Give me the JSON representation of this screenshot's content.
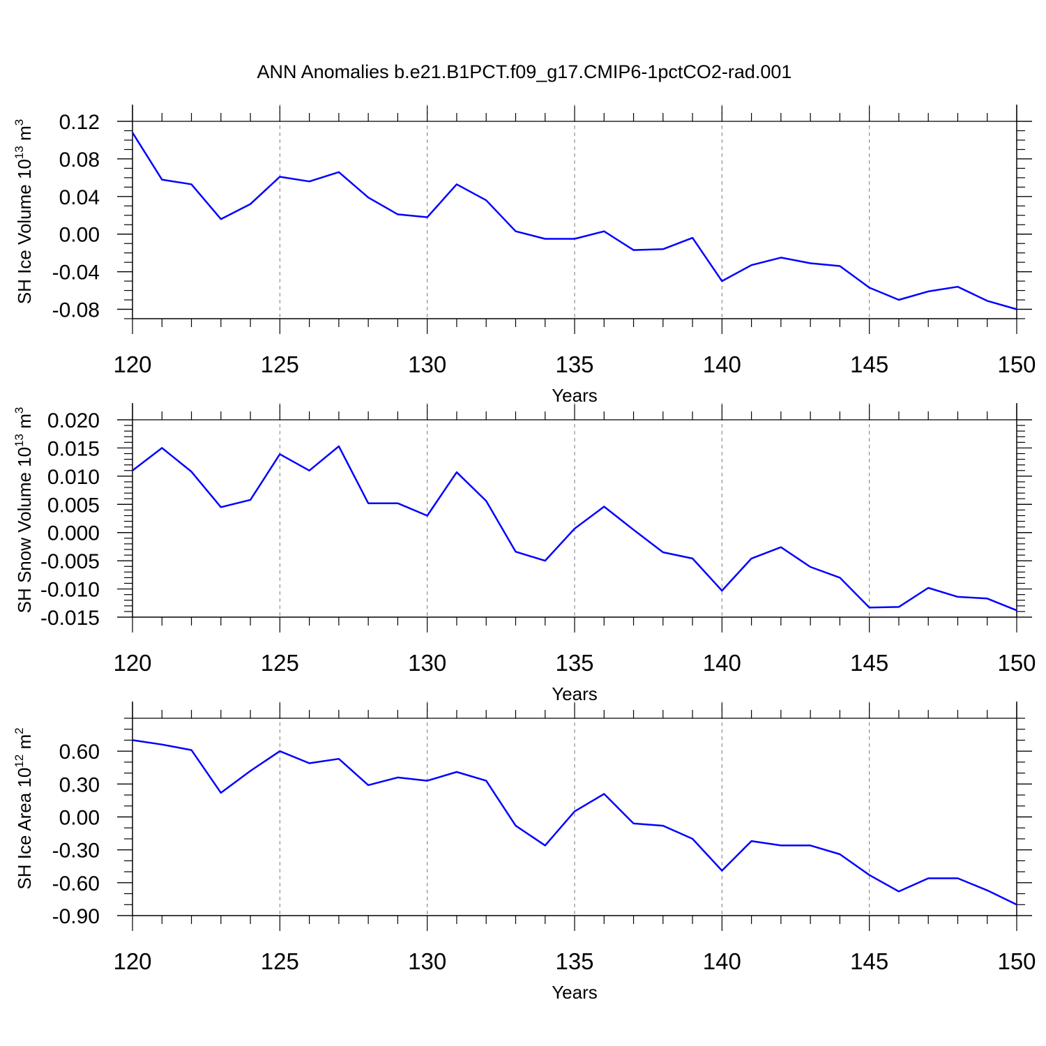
{
  "title": "ANN Anomalies b.e21.B1PCT.f09_g17.CMIP6-1pctCO2-rad.001",
  "colors": {
    "series": "#0000ff",
    "axis": "#000000",
    "grid": "#777777",
    "background": "#ffffff"
  },
  "chart_data": [
    {
      "type": "line",
      "ylabel": {
        "text": "SH Ice Volume 10",
        "exponent": "13",
        "unit": " m",
        "unit_exponent": "3"
      },
      "xlabel": "Years",
      "xlim": [
        120,
        150
      ],
      "ylim": [
        -0.09,
        0.12
      ],
      "y_ticks": [
        0.12,
        0.08,
        0.04,
        0.0,
        -0.04,
        -0.08
      ],
      "y_tick_labels": [
        "0.12",
        "0.08",
        "0.04",
        "0.00",
        "-0.04",
        "-0.08"
      ],
      "y_minor_step": 0.01,
      "x_ticks": [
        120,
        125,
        130,
        135,
        140,
        145,
        150
      ],
      "x_tick_labels": [
        "120",
        "125",
        "130",
        "135",
        "140",
        "145",
        "150"
      ],
      "x_minor_step": 1,
      "grid": "vertical dashed at major x ticks",
      "x": [
        120,
        121,
        122,
        123,
        124,
        125,
        126,
        127,
        128,
        129,
        130,
        131,
        132,
        133,
        134,
        135,
        136,
        137,
        138,
        139,
        140,
        141,
        142,
        143,
        144,
        145,
        146,
        147,
        148,
        149,
        150
      ],
      "values": [
        0.108,
        0.058,
        0.053,
        0.016,
        0.032,
        0.061,
        0.056,
        0.066,
        0.039,
        0.021,
        0.018,
        0.053,
        0.036,
        0.003,
        -0.005,
        -0.005,
        0.003,
        -0.017,
        -0.016,
        -0.004,
        -0.05,
        -0.033,
        -0.025,
        -0.031,
        -0.034,
        -0.057,
        -0.07,
        -0.061,
        -0.056,
        -0.071,
        -0.08
      ]
    },
    {
      "type": "line",
      "ylabel": {
        "text": "SH Snow Volume 10",
        "exponent": "13",
        "unit": " m",
        "unit_exponent": "3"
      },
      "xlabel": "Years",
      "xlim": [
        120,
        150
      ],
      "ylim": [
        -0.015,
        0.02
      ],
      "y_ticks": [
        0.02,
        0.015,
        0.01,
        0.005,
        0.0,
        -0.005,
        -0.01,
        -0.015
      ],
      "y_tick_labels": [
        "0.020",
        "0.015",
        "0.010",
        "0.005",
        "0.000",
        "-0.005",
        "-0.010",
        "-0.015"
      ],
      "y_minor_step": 0.001,
      "x_ticks": [
        120,
        125,
        130,
        135,
        140,
        145,
        150
      ],
      "x_tick_labels": [
        "120",
        "125",
        "130",
        "135",
        "140",
        "145",
        "150"
      ],
      "x_minor_step": 1,
      "grid": "vertical dashed at major x ticks",
      "x": [
        120,
        121,
        122,
        123,
        124,
        125,
        126,
        127,
        128,
        129,
        130,
        131,
        132,
        133,
        134,
        135,
        136,
        137,
        138,
        139,
        140,
        141,
        142,
        143,
        144,
        145,
        146,
        147,
        148,
        149,
        150
      ],
      "values": [
        0.011,
        0.015,
        0.0108,
        0.0045,
        0.0058,
        0.0139,
        0.011,
        0.0153,
        0.0052,
        0.0052,
        0.003,
        0.0107,
        0.0056,
        -0.0034,
        -0.005,
        0.0007,
        0.0046,
        0.0005,
        -0.0035,
        -0.0046,
        -0.0103,
        -0.0046,
        -0.0026,
        -0.0061,
        -0.008,
        -0.0133,
        -0.0132,
        -0.0098,
        -0.0114,
        -0.0117,
        -0.0138
      ]
    },
    {
      "type": "line",
      "ylabel": {
        "text": "SH Ice Area 10",
        "exponent": "12",
        "unit": " m",
        "unit_exponent": "2"
      },
      "xlabel": "Years",
      "xlim": [
        120,
        150
      ],
      "ylim": [
        -0.9,
        0.9
      ],
      "y_ticks": [
        0.6,
        0.3,
        0.0,
        -0.3,
        -0.6,
        -0.9
      ],
      "y_tick_labels": [
        "0.60",
        "0.30",
        "0.00",
        "-0.30",
        "-0.60",
        "-0.90"
      ],
      "y_minor_step": 0.1,
      "x_ticks": [
        120,
        125,
        130,
        135,
        140,
        145,
        150
      ],
      "x_tick_labels": [
        "120",
        "125",
        "130",
        "135",
        "140",
        "145",
        "150"
      ],
      "x_minor_step": 1,
      "grid": "vertical dashed at major x ticks",
      "x": [
        120,
        121,
        122,
        123,
        124,
        125,
        126,
        127,
        128,
        129,
        130,
        131,
        132,
        133,
        134,
        135,
        136,
        137,
        138,
        139,
        140,
        141,
        142,
        143,
        144,
        145,
        146,
        147,
        148,
        149,
        150
      ],
      "values": [
        0.7,
        0.66,
        0.61,
        0.22,
        0.42,
        0.6,
        0.49,
        0.53,
        0.29,
        0.36,
        0.33,
        0.41,
        0.33,
        -0.08,
        -0.26,
        0.05,
        0.21,
        -0.06,
        -0.08,
        -0.2,
        -0.49,
        -0.22,
        -0.26,
        -0.26,
        -0.34,
        -0.53,
        -0.68,
        -0.56,
        -0.56,
        -0.67,
        -0.8
      ]
    }
  ]
}
